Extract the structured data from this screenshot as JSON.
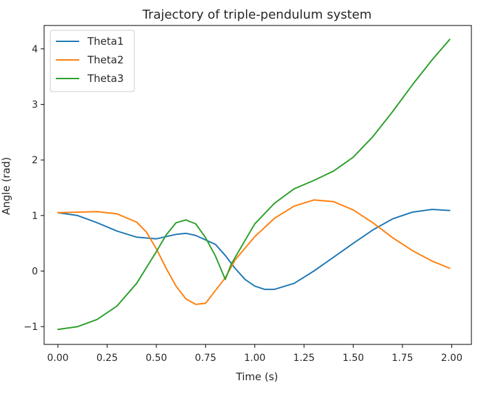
{
  "chart_data": {
    "type": "line",
    "title": "Trajectory of triple-pendulum system",
    "xlabel": "Time (s)",
    "ylabel": "Angle (rad)",
    "xlim": [
      -0.07,
      2.1
    ],
    "ylim": [
      -1.32,
      4.42
    ],
    "xticks": [
      0.0,
      0.25,
      0.5,
      0.75,
      1.0,
      1.25,
      1.5,
      1.75,
      2.0
    ],
    "xtick_labels": [
      "0.00",
      "0.25",
      "0.50",
      "0.75",
      "1.00",
      "1.25",
      "1.50",
      "1.75",
      "2.00"
    ],
    "yticks": [
      -1,
      0,
      1,
      2,
      3,
      4
    ],
    "ytick_labels": [
      "−1",
      "0",
      "1",
      "2",
      "3",
      "4"
    ],
    "grid": false,
    "legend_position": "top-left",
    "series": [
      {
        "name": "Theta1",
        "color": "#1f77b4",
        "points": [
          [
            0.0,
            1.05
          ],
          [
            0.1,
            1.0
          ],
          [
            0.2,
            0.87
          ],
          [
            0.3,
            0.72
          ],
          [
            0.4,
            0.61
          ],
          [
            0.5,
            0.58
          ],
          [
            0.6,
            0.66
          ],
          [
            0.65,
            0.68
          ],
          [
            0.7,
            0.64
          ],
          [
            0.8,
            0.48
          ],
          [
            0.85,
            0.28
          ],
          [
            0.9,
            0.05
          ],
          [
            0.95,
            -0.15
          ],
          [
            1.0,
            -0.27
          ],
          [
            1.05,
            -0.33
          ],
          [
            1.1,
            -0.33
          ],
          [
            1.2,
            -0.22
          ],
          [
            1.3,
            0.0
          ],
          [
            1.4,
            0.25
          ],
          [
            1.5,
            0.5
          ],
          [
            1.6,
            0.74
          ],
          [
            1.7,
            0.94
          ],
          [
            1.8,
            1.06
          ],
          [
            1.9,
            1.11
          ],
          [
            1.99,
            1.09
          ]
        ]
      },
      {
        "name": "Theta2",
        "color": "#ff7f0e",
        "points": [
          [
            0.0,
            1.05
          ],
          [
            0.1,
            1.06
          ],
          [
            0.2,
            1.07
          ],
          [
            0.3,
            1.03
          ],
          [
            0.4,
            0.88
          ],
          [
            0.45,
            0.7
          ],
          [
            0.5,
            0.4
          ],
          [
            0.55,
            0.05
          ],
          [
            0.6,
            -0.27
          ],
          [
            0.65,
            -0.5
          ],
          [
            0.7,
            -0.6
          ],
          [
            0.75,
            -0.58
          ],
          [
            0.8,
            -0.35
          ],
          [
            0.85,
            -0.12
          ],
          [
            0.9,
            0.2
          ],
          [
            1.0,
            0.62
          ],
          [
            1.1,
            0.95
          ],
          [
            1.2,
            1.17
          ],
          [
            1.3,
            1.28
          ],
          [
            1.4,
            1.25
          ],
          [
            1.5,
            1.1
          ],
          [
            1.6,
            0.87
          ],
          [
            1.7,
            0.6
          ],
          [
            1.8,
            0.37
          ],
          [
            1.9,
            0.18
          ],
          [
            1.99,
            0.05
          ]
        ]
      },
      {
        "name": "Theta3",
        "color": "#2ca02c",
        "points": [
          [
            0.0,
            -1.05
          ],
          [
            0.1,
            -1.0
          ],
          [
            0.2,
            -0.87
          ],
          [
            0.3,
            -0.63
          ],
          [
            0.4,
            -0.22
          ],
          [
            0.5,
            0.35
          ],
          [
            0.55,
            0.65
          ],
          [
            0.6,
            0.87
          ],
          [
            0.65,
            0.92
          ],
          [
            0.7,
            0.85
          ],
          [
            0.75,
            0.6
          ],
          [
            0.8,
            0.27
          ],
          [
            0.85,
            -0.15
          ],
          [
            0.88,
            0.12
          ],
          [
            0.95,
            0.55
          ],
          [
            1.0,
            0.85
          ],
          [
            1.1,
            1.22
          ],
          [
            1.2,
            1.48
          ],
          [
            1.3,
            1.63
          ],
          [
            1.4,
            1.8
          ],
          [
            1.5,
            2.05
          ],
          [
            1.6,
            2.42
          ],
          [
            1.7,
            2.87
          ],
          [
            1.8,
            3.35
          ],
          [
            1.9,
            3.8
          ],
          [
            1.99,
            4.17
          ]
        ]
      }
    ]
  }
}
